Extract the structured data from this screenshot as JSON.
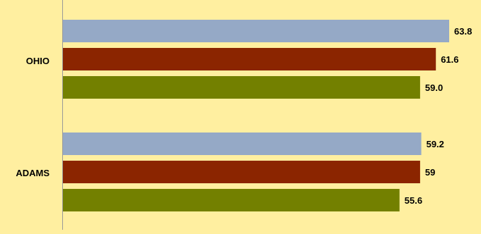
{
  "chart_data": {
    "type": "bar",
    "orientation": "horizontal",
    "categories": [
      "OHIO",
      "ADAMS"
    ],
    "series": [
      {
        "values": [
          63.8,
          59.2
        ],
        "color": "#95A9C6"
      },
      {
        "values": [
          61.6,
          59
        ],
        "color": "#8B2500"
      },
      {
        "values": [
          59.0,
          55.6
        ],
        "color": "#738000"
      }
    ],
    "value_labels": [
      [
        "63.8",
        "61.6",
        "59.0"
      ],
      [
        "59.2",
        "59",
        "55.6"
      ]
    ],
    "xlim": [
      0,
      64
    ],
    "grid": false,
    "legend": "none",
    "background": "#FFEFA0"
  }
}
